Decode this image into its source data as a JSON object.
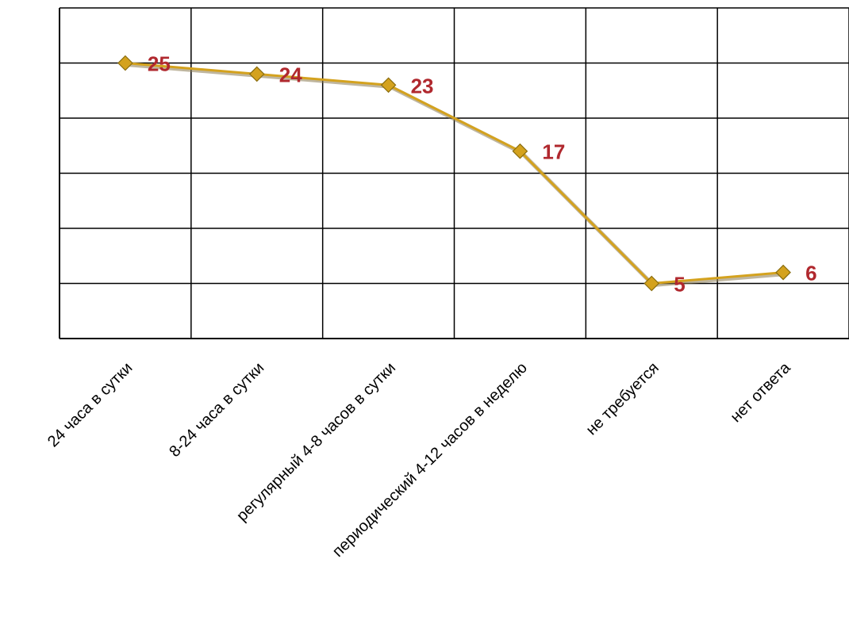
{
  "chart_data": {
    "type": "line",
    "categories": [
      "24 часа в сутки",
      "8-24 часа в сутки",
      "регулярный 4-8 часов в сутки",
      "периодический 4-12 часов в неделю",
      "не требуется",
      "нет ответа"
    ],
    "series": [
      {
        "values": [
          25,
          24,
          23,
          17,
          5,
          6
        ]
      }
    ],
    "ylim": [
      0,
      30
    ],
    "y_gridlines": true,
    "x_gridlines": true,
    "y_tick_labels_shown": false,
    "legend": "none",
    "line_color": "#d4a21e",
    "marker": "diamond",
    "label_color": "#b0282e"
  }
}
